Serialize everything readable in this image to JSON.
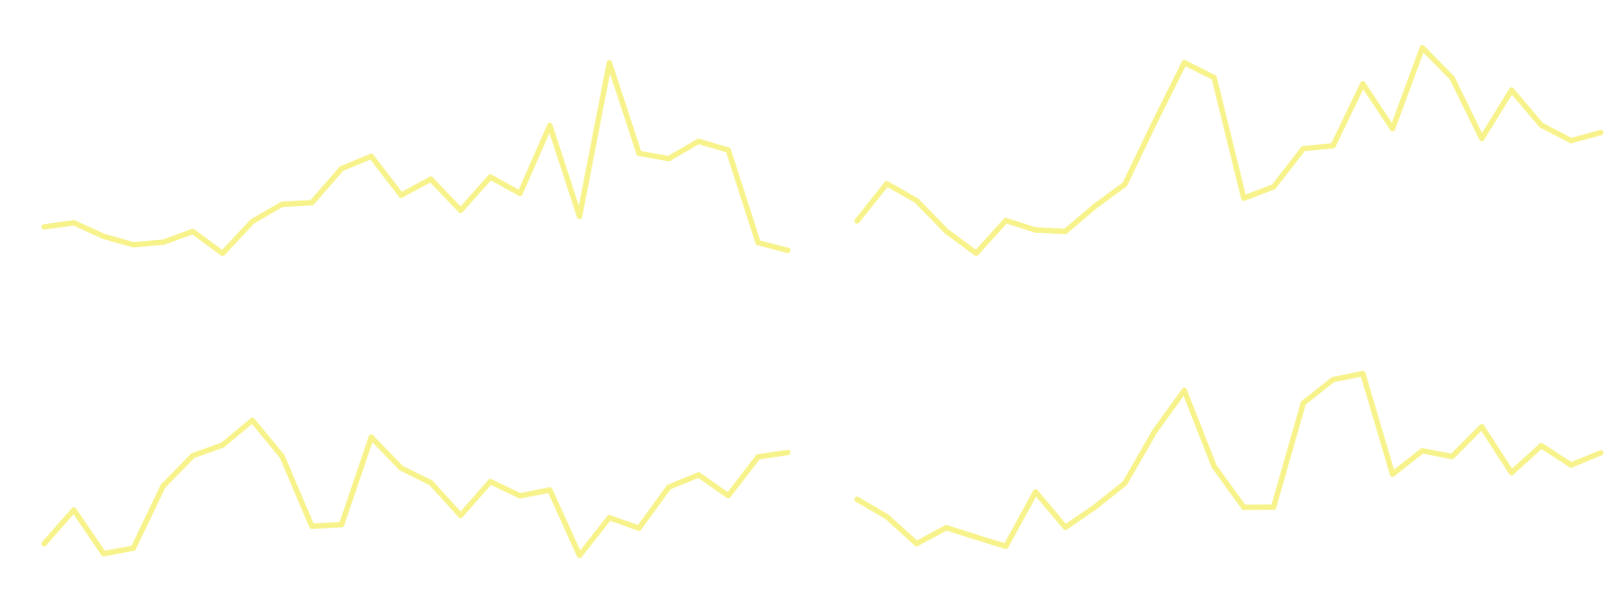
{
  "chart_data": [
    {
      "type": "line",
      "title": "",
      "xlabel": "",
      "ylabel": "",
      "grid": false,
      "legend": "none",
      "color": "#f7f38a",
      "x": [
        0,
        1,
        2,
        3,
        4,
        5,
        6,
        7,
        8,
        9,
        10,
        11,
        12,
        13,
        14,
        15,
        16,
        17,
        18,
        19,
        20,
        21,
        22,
        23,
        24,
        25
      ],
      "values": [
        34.3,
        37.6,
        26.7,
        20.0,
        22.0,
        30.6,
        13.1,
        38.7,
        52.4,
        53.7,
        81.0,
        90.8,
        59.7,
        72.5,
        47.5,
        74.2,
        61.1,
        115.5,
        42.7,
        165.7,
        93.2,
        89.0,
        102.8,
        95.8,
        21.7,
        15.5
      ],
      "ylim": [
        0,
        180
      ]
    },
    {
      "type": "line",
      "title": "",
      "xlabel": "",
      "ylabel": "",
      "grid": false,
      "legend": "none",
      "color": "#f7f38a",
      "x": [
        0,
        1,
        2,
        3,
        4,
        5,
        6,
        7,
        8,
        9,
        10,
        11,
        12,
        13,
        14,
        15,
        16,
        17,
        18,
        19,
        20,
        21,
        22,
        23,
        24,
        25
      ],
      "values": [
        31.8,
        61.7,
        48.1,
        23.7,
        6.0,
        32.2,
        24.6,
        23.5,
        43.7,
        61.3,
        110.8,
        158.6,
        146.7,
        50.1,
        59.2,
        89.8,
        92.1,
        141.6,
        105.8,
        170.6,
        146.4,
        97.9,
        136.6,
        108.6,
        96.2,
        102.6
      ],
      "ylim": [
        0,
        180
      ]
    },
    {
      "type": "line",
      "title": "",
      "xlabel": "",
      "ylabel": "",
      "grid": false,
      "legend": "none",
      "color": "#f7f38a",
      "x": [
        0,
        1,
        2,
        3,
        4,
        5,
        6,
        7,
        8,
        9,
        10,
        11,
        12,
        13,
        14,
        15,
        16,
        17,
        18,
        19,
        20,
        21,
        22,
        23,
        24,
        25
      ],
      "values": [
        21.8,
        48.8,
        13.8,
        18.2,
        68.0,
        92.3,
        100.8,
        120.6,
        91.8,
        35.8,
        37.1,
        107.1,
        82.4,
        70.6,
        44.4,
        71.5,
        60.1,
        64.8,
        12.4,
        42.6,
        34.3,
        67.0,
        76.9,
        60.3,
        91.3,
        94.9
      ],
      "ylim": [
        0,
        180
      ]
    },
    {
      "type": "line",
      "title": "",
      "xlabel": "",
      "ylabel": "",
      "grid": false,
      "legend": "none",
      "color": "#f7f38a",
      "x": [
        0,
        1,
        2,
        3,
        4,
        5,
        6,
        7,
        8,
        9,
        10,
        11,
        12,
        13,
        14,
        15,
        16,
        17,
        18,
        19,
        20,
        21,
        22,
        23,
        24,
        25
      ],
      "values": [
        50.1,
        36.2,
        14.6,
        27.4,
        19.8,
        12.5,
        56.1,
        27.7,
        44.0,
        63.1,
        104.4,
        137.3,
        76.6,
        43.7,
        43.9,
        127.2,
        146.0,
        150.8,
        70.3,
        89.1,
        84.4,
        108.3,
        71.5,
        93.1,
        77.6,
        87.4
      ],
      "ylim": [
        0,
        180
      ]
    }
  ]
}
